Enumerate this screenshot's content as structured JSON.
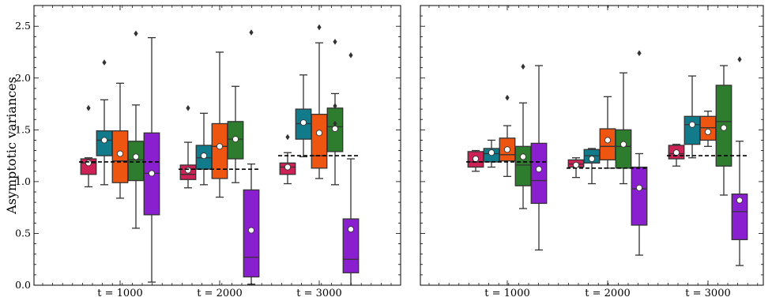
{
  "chart_data": [
    {
      "type": "box",
      "title": "",
      "ylabel": "Asymptotic variances",
      "xlabel": "",
      "ylim": [
        0,
        2.7
      ],
      "yticks": [
        "0.0",
        "0.5",
        "1.0",
        "1.5",
        "2.0",
        "2.5"
      ],
      "categories": [
        "t = 1000",
        "t = 2000",
        "t = 3000"
      ],
      "box_colors": [
        "#cc2255",
        "#117a8b",
        "#ee5511",
        "#2e7d2e",
        "#8a1fd0"
      ],
      "reference_lines": [
        1.19,
        1.12,
        1.25
      ],
      "series": [
        {
          "values": [
            {
              "category": "t = 1000",
              "whislo": 0.95,
              "q1": 1.07,
              "med": 1.18,
              "q3": 1.22,
              "whishi": 1.23,
              "mean": 1.18,
              "fliers": [
                1.71
              ]
            },
            {
              "category": "t = 2000",
              "whislo": 0.94,
              "q1": 1.02,
              "med": 1.07,
              "q3": 1.16,
              "whishi": 1.38,
              "mean": 1.11,
              "fliers": [
                1.71
              ]
            },
            {
              "category": "t = 3000",
              "whislo": 0.98,
              "q1": 1.07,
              "med": 1.14,
              "q3": 1.18,
              "whishi": 1.28,
              "mean": 1.14,
              "fliers": [
                1.43
              ]
            }
          ]
        },
        {
          "values": [
            {
              "category": "t = 1000",
              "whislo": 0.97,
              "q1": 1.25,
              "med": 1.4,
              "q3": 1.49,
              "whishi": 1.79,
              "mean": 1.4,
              "fliers": [
                2.15
              ]
            },
            {
              "category": "t = 2000",
              "whislo": 0.97,
              "q1": 1.12,
              "med": 1.23,
              "q3": 1.35,
              "whishi": 1.66,
              "mean": 1.25,
              "fliers": []
            },
            {
              "category": "t = 3000",
              "whislo": 1.24,
              "q1": 1.41,
              "med": 1.56,
              "q3": 1.7,
              "whishi": 2.03,
              "mean": 1.57,
              "fliers": []
            }
          ]
        },
        {
          "values": [
            {
              "category": "t = 1000",
              "whislo": 0.84,
              "q1": 0.99,
              "med": 1.2,
              "q3": 1.49,
              "whishi": 1.95,
              "mean": 1.27,
              "fliers": []
            },
            {
              "category": "t = 2000",
              "whislo": 0.85,
              "q1": 1.03,
              "med": 1.34,
              "q3": 1.56,
              "whishi": 2.25,
              "mean": 1.34,
              "fliers": []
            },
            {
              "category": "t = 3000",
              "whislo": 1.03,
              "q1": 1.13,
              "med": 1.25,
              "q3": 1.65,
              "whishi": 2.34,
              "mean": 1.47,
              "fliers": [
                2.49
              ]
            }
          ]
        },
        {
          "values": [
            {
              "category": "t = 1000",
              "whislo": 0.55,
              "q1": 1.01,
              "med": 1.21,
              "q3": 1.39,
              "whishi": 1.74,
              "mean": 1.24,
              "fliers": [
                2.43
              ]
            },
            {
              "category": "t = 2000",
              "whislo": 0.99,
              "q1": 1.22,
              "med": 1.41,
              "q3": 1.58,
              "whishi": 1.92,
              "mean": 1.41,
              "fliers": []
            },
            {
              "category": "t = 3000",
              "whislo": 0.97,
              "q1": 1.29,
              "med": 1.53,
              "q3": 1.71,
              "whishi": 1.85,
              "mean": 1.51,
              "fliers": [
                2.35,
                1.73,
                1.56
              ]
            }
          ]
        },
        {
          "values": [
            {
              "category": "t = 1000",
              "whislo": 0.03,
              "q1": 0.68,
              "med": 1.08,
              "q3": 1.47,
              "whishi": 2.39,
              "mean": 1.08,
              "fliers": []
            },
            {
              "category": "t = 2000",
              "whislo": 0.01,
              "q1": 0.08,
              "med": 0.27,
              "q3": 0.92,
              "whishi": 1.17,
              "mean": 0.53,
              "fliers": [
                2.44
              ]
            },
            {
              "category": "t = 3000",
              "whislo": 0.0,
              "q1": 0.12,
              "med": 0.25,
              "q3": 0.64,
              "whishi": 1.22,
              "mean": 0.54,
              "fliers": [
                2.22
              ]
            }
          ]
        }
      ]
    },
    {
      "type": "box",
      "title": "",
      "ylabel": "",
      "xlabel": "",
      "ylim": [
        0,
        2.7
      ],
      "categories": [
        "t = 1000",
        "t = 2000",
        "t = 3000"
      ],
      "box_colors": [
        "#cc2255",
        "#117a8b",
        "#ee5511",
        "#2e7d2e",
        "#8a1fd0"
      ],
      "reference_lines": [
        1.19,
        1.13,
        1.25
      ],
      "series": [
        {
          "values": [
            {
              "category": "t = 1000",
              "whislo": 1.1,
              "q1": 1.14,
              "med": 1.19,
              "q3": 1.29,
              "whishi": 1.3,
              "mean": 1.22,
              "fliers": []
            },
            {
              "category": "t = 2000",
              "whislo": 1.04,
              "q1": 1.14,
              "med": 1.17,
              "q3": 1.21,
              "whishi": 1.23,
              "mean": 1.16,
              "fliers": []
            },
            {
              "category": "t = 3000",
              "whislo": 1.15,
              "q1": 1.22,
              "med": 1.27,
              "q3": 1.35,
              "whishi": 1.36,
              "mean": 1.28,
              "fliers": []
            }
          ]
        },
        {
          "values": [
            {
              "category": "t = 1000",
              "whislo": 1.14,
              "q1": 1.19,
              "med": 1.27,
              "q3": 1.32,
              "whishi": 1.4,
              "mean": 1.28,
              "fliers": []
            },
            {
              "category": "t = 2000",
              "whislo": 0.98,
              "q1": 1.18,
              "med": 1.25,
              "q3": 1.31,
              "whishi": 1.32,
              "mean": 1.22,
              "fliers": []
            },
            {
              "category": "t = 3000",
              "whislo": 1.23,
              "q1": 1.36,
              "med": 1.55,
              "q3": 1.63,
              "whishi": 2.02,
              "mean": 1.55,
              "fliers": []
            }
          ]
        },
        {
          "values": [
            {
              "category": "t = 1000",
              "whislo": 1.05,
              "q1": 1.2,
              "med": 1.26,
              "q3": 1.42,
              "whishi": 1.54,
              "mean": 1.31,
              "fliers": [
                1.81
              ]
            },
            {
              "category": "t = 2000",
              "whislo": 1.13,
              "q1": 1.21,
              "med": 1.34,
              "q3": 1.51,
              "whishi": 1.82,
              "mean": 1.4,
              "fliers": []
            },
            {
              "category": "t = 3000",
              "whislo": 1.34,
              "q1": 1.4,
              "med": 1.52,
              "q3": 1.63,
              "whishi": 1.68,
              "mean": 1.48,
              "fliers": []
            }
          ]
        },
        {
          "values": [
            {
              "category": "t = 1000",
              "whislo": 0.74,
              "q1": 0.96,
              "med": 1.16,
              "q3": 1.34,
              "whishi": 1.76,
              "mean": 1.24,
              "fliers": [
                2.11
              ]
            },
            {
              "category": "t = 2000",
              "whislo": 0.98,
              "q1": 1.13,
              "med": 1.34,
              "q3": 1.5,
              "whishi": 2.05,
              "mean": 1.36,
              "fliers": []
            },
            {
              "category": "t = 3000",
              "whislo": 0.87,
              "q1": 1.15,
              "med": 1.58,
              "q3": 1.93,
              "whishi": 2.12,
              "mean": 1.52,
              "fliers": []
            }
          ]
        },
        {
          "values": [
            {
              "category": "t = 1000",
              "whislo": 0.34,
              "q1": 0.79,
              "med": 1.01,
              "q3": 1.37,
              "whishi": 2.12,
              "mean": 1.12,
              "fliers": []
            },
            {
              "category": "t = 2000",
              "whislo": 0.29,
              "q1": 0.58,
              "med": 0.93,
              "q3": 1.14,
              "whishi": 1.27,
              "mean": 0.94,
              "fliers": [
                2.24
              ]
            },
            {
              "category": "t = 3000",
              "whislo": 0.19,
              "q1": 0.44,
              "med": 0.71,
              "q3": 0.88,
              "whishi": 1.39,
              "mean": 0.82,
              "fliers": [
                2.18
              ]
            }
          ]
        }
      ]
    }
  ]
}
